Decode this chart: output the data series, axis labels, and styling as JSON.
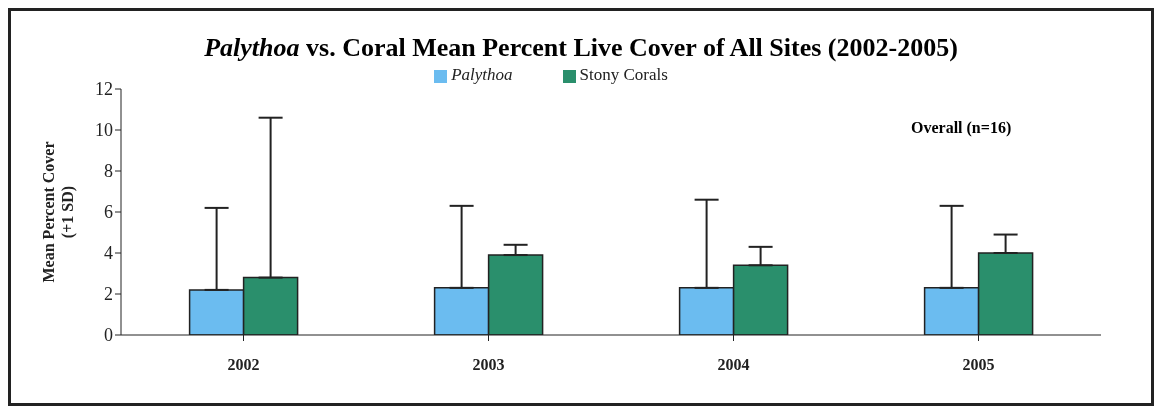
{
  "chart_data": {
    "type": "bar",
    "title": "Palythoa vs. Coral Mean Percent Live Cover of All Sites (2002-2005)",
    "ylabel": "Mean Percent Cover\n(+1 SD)",
    "annotations": [
      "Overall (n=16)"
    ],
    "categories": [
      "2002",
      "2003",
      "2004",
      "2005"
    ],
    "series": [
      {
        "name": "Palythoa",
        "color": "#6bbcf0",
        "values": [
          2.2,
          2.3,
          2.3,
          2.3
        ],
        "errors": [
          [
            2.2,
            6.2
          ],
          [
            2.3,
            6.3
          ],
          [
            2.3,
            6.6
          ],
          [
            2.3,
            6.3
          ]
        ]
      },
      {
        "name": "Stony Corals",
        "color": "#2a8f6c",
        "values": [
          2.8,
          3.9,
          3.4,
          4.0
        ],
        "errors": [
          [
            2.8,
            10.6
          ],
          [
            3.9,
            4.4
          ],
          [
            3.4,
            4.3
          ],
          [
            4.0,
            4.9
          ]
        ]
      }
    ],
    "ylim": [
      0,
      12
    ],
    "yticks": [
      0,
      2,
      4,
      6,
      8,
      10,
      12
    ],
    "grid": false,
    "legend": "top"
  }
}
